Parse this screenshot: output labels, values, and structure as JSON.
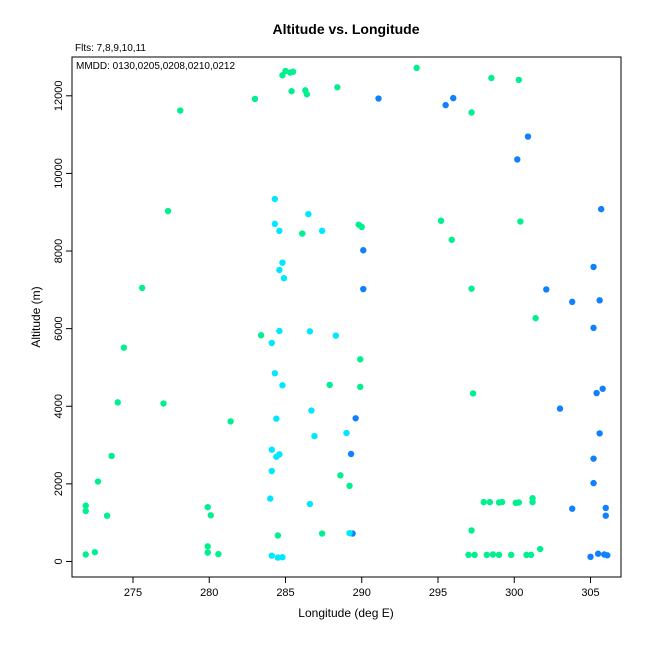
{
  "chart_data": {
    "type": "scatter",
    "title": "Altitude vs. Longitude",
    "subtitle": "Flts: 7,8,9,10,11",
    "annotation": "MMDD: 0130,0205,0208,0210,0212",
    "xlabel": "Longitude (deg E)",
    "ylabel": "Altitude (m)",
    "xlim": [
      271.0,
      307.0
    ],
    "ylim": [
      -400,
      13000
    ],
    "xticks": [
      275,
      280,
      285,
      290,
      295,
      300,
      305
    ],
    "yticks": [
      0,
      2000,
      4000,
      6000,
      8000,
      10000,
      12000
    ],
    "grid": false,
    "legend": "none",
    "colors": {
      "blue": "#1080ff",
      "cyan": "#00e8ff",
      "green": "#00f090"
    },
    "series": [
      {
        "color": "#1080ff",
        "points": [
          [
            291.1,
            11930
          ],
          [
            295.5,
            11760
          ],
          [
            296.0,
            11940
          ],
          [
            300.9,
            10950
          ],
          [
            300.2,
            10360
          ],
          [
            290.1,
            8020
          ],
          [
            290.1,
            7020
          ],
          [
            302.1,
            7010
          ],
          [
            303.8,
            6690
          ],
          [
            305.7,
            9080
          ],
          [
            305.2,
            7590
          ],
          [
            305.6,
            6730
          ],
          [
            305.2,
            6020
          ],
          [
            305.8,
            4450
          ],
          [
            305.4,
            4340
          ],
          [
            303.0,
            3940
          ],
          [
            289.6,
            3690
          ],
          [
            305.6,
            3300
          ],
          [
            289.3,
            2770
          ],
          [
            305.2,
            2650
          ],
          [
            305.2,
            2020
          ],
          [
            303.8,
            1360
          ],
          [
            306.0,
            1380
          ],
          [
            306.0,
            1180
          ],
          [
            289.4,
            720
          ],
          [
            305.0,
            120
          ],
          [
            305.5,
            200
          ],
          [
            305.9,
            180
          ],
          [
            306.1,
            160
          ]
        ]
      },
      {
        "color": "#00e8ff",
        "points": [
          [
            284.3,
            9340
          ],
          [
            284.3,
            8700
          ],
          [
            284.6,
            8520
          ],
          [
            286.5,
            8950
          ],
          [
            287.4,
            8520
          ],
          [
            284.8,
            7700
          ],
          [
            284.6,
            7510
          ],
          [
            284.9,
            7300
          ],
          [
            284.6,
            5940
          ],
          [
            286.6,
            5930
          ],
          [
            284.1,
            5630
          ],
          [
            288.3,
            5820
          ],
          [
            284.3,
            4850
          ],
          [
            284.8,
            4540
          ],
          [
            286.7,
            3890
          ],
          [
            284.4,
            3680
          ],
          [
            286.9,
            3230
          ],
          [
            289.0,
            3310
          ],
          [
            284.1,
            2880
          ],
          [
            284.4,
            2700
          ],
          [
            284.6,
            2760
          ],
          [
            284.1,
            2330
          ],
          [
            284.0,
            1620
          ],
          [
            286.6,
            1480
          ],
          [
            289.2,
            730
          ],
          [
            284.1,
            150
          ],
          [
            284.5,
            100
          ],
          [
            284.8,
            110
          ]
        ]
      },
      {
        "color": "#00f090",
        "points": [
          [
            293.6,
            12720
          ],
          [
            284.8,
            12530
          ],
          [
            285.0,
            12640
          ],
          [
            285.3,
            12600
          ],
          [
            285.5,
            12620
          ],
          [
            298.5,
            12460
          ],
          [
            300.3,
            12410
          ],
          [
            283.0,
            11920
          ],
          [
            285.4,
            12120
          ],
          [
            286.3,
            12140
          ],
          [
            286.4,
            12040
          ],
          [
            288.4,
            12220
          ],
          [
            278.1,
            11620
          ],
          [
            297.2,
            11570
          ],
          [
            277.3,
            9030
          ],
          [
            295.2,
            8780
          ],
          [
            300.4,
            8760
          ],
          [
            289.8,
            8680
          ],
          [
            290.0,
            8620
          ],
          [
            286.1,
            8450
          ],
          [
            295.9,
            8290
          ],
          [
            275.6,
            7050
          ],
          [
            297.2,
            7030
          ],
          [
            301.4,
            6270
          ],
          [
            283.4,
            5830
          ],
          [
            274.4,
            5510
          ],
          [
            289.9,
            5210
          ],
          [
            287.9,
            4550
          ],
          [
            289.9,
            4500
          ],
          [
            297.3,
            4330
          ],
          [
            274.0,
            4100
          ],
          [
            277.0,
            4070
          ],
          [
            281.4,
            3610
          ],
          [
            273.6,
            2720
          ],
          [
            288.6,
            2220
          ],
          [
            272.7,
            2060
          ],
          [
            289.2,
            1950
          ],
          [
            301.2,
            1630
          ],
          [
            298.0,
            1530
          ],
          [
            298.4,
            1530
          ],
          [
            299.0,
            1520
          ],
          [
            299.2,
            1530
          ],
          [
            300.1,
            1510
          ],
          [
            300.3,
            1520
          ],
          [
            301.2,
            1530
          ],
          [
            271.9,
            1440
          ],
          [
            271.9,
            1300
          ],
          [
            279.9,
            1400
          ],
          [
            280.1,
            1190
          ],
          [
            273.3,
            1180
          ],
          [
            297.2,
            800
          ],
          [
            287.4,
            720
          ],
          [
            284.5,
            670
          ],
          [
            279.9,
            390
          ],
          [
            279.9,
            230
          ],
          [
            280.6,
            190
          ],
          [
            272.5,
            240
          ],
          [
            271.9,
            180
          ],
          [
            297.0,
            170
          ],
          [
            297.4,
            170
          ],
          [
            298.2,
            170
          ],
          [
            298.6,
            180
          ],
          [
            299.0,
            170
          ],
          [
            299.8,
            170
          ],
          [
            300.8,
            170
          ],
          [
            301.1,
            170
          ],
          [
            301.7,
            320
          ]
        ]
      }
    ]
  }
}
